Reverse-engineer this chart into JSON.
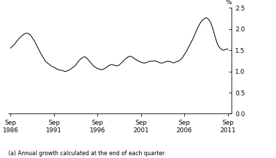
{
  "ylabel": "%",
  "footnote": "(a) Annual growth calculated at the end of each quarter.",
  "line_color": "#000000",
  "background_color": "#ffffff",
  "ylim": [
    0,
    2.5
  ],
  "yticks": [
    0,
    0.5,
    1.0,
    1.5,
    2.0,
    2.5
  ],
  "xtick_labels": [
    "Sep\n1986",
    "Sep\n1991",
    "Sep\n1996",
    "Sep\n2001",
    "Sep\n2006",
    "Sep\n2011"
  ],
  "xtick_positions": [
    1986.75,
    1991.75,
    1996.75,
    2001.75,
    2006.75,
    2011.75
  ],
  "xlim": [
    1986.5,
    2012.2
  ],
  "years": [
    1986.75,
    1987.0,
    1987.25,
    1987.5,
    1987.75,
    1988.0,
    1988.25,
    1988.5,
    1988.75,
    1989.0,
    1989.25,
    1989.5,
    1989.75,
    1990.0,
    1990.25,
    1990.5,
    1990.75,
    1991.0,
    1991.25,
    1991.5,
    1991.75,
    1992.0,
    1992.25,
    1992.5,
    1992.75,
    1993.0,
    1993.25,
    1993.5,
    1993.75,
    1994.0,
    1994.25,
    1994.5,
    1994.75,
    1995.0,
    1995.25,
    1995.5,
    1995.75,
    1996.0,
    1996.25,
    1996.5,
    1996.75,
    1997.0,
    1997.25,
    1997.5,
    1997.75,
    1998.0,
    1998.25,
    1998.5,
    1998.75,
    1999.0,
    1999.25,
    1999.5,
    1999.75,
    2000.0,
    2000.25,
    2000.5,
    2000.75,
    2001.0,
    2001.25,
    2001.5,
    2001.75,
    2002.0,
    2002.25,
    2002.5,
    2002.75,
    2003.0,
    2003.25,
    2003.5,
    2003.75,
    2004.0,
    2004.25,
    2004.5,
    2004.75,
    2005.0,
    2005.25,
    2005.5,
    2005.75,
    2006.0,
    2006.25,
    2006.5,
    2006.75,
    2007.0,
    2007.25,
    2007.5,
    2007.75,
    2008.0,
    2008.25,
    2008.5,
    2008.75,
    2009.0,
    2009.25,
    2009.5,
    2009.75,
    2010.0,
    2010.25,
    2010.5,
    2010.75,
    2011.0,
    2011.25,
    2011.5,
    2011.75
  ],
  "values": [
    1.55,
    1.6,
    1.65,
    1.72,
    1.78,
    1.83,
    1.87,
    1.9,
    1.9,
    1.87,
    1.8,
    1.72,
    1.62,
    1.52,
    1.42,
    1.33,
    1.25,
    1.2,
    1.16,
    1.12,
    1.1,
    1.07,
    1.04,
    1.03,
    1.02,
    1.0,
    1.01,
    1.03,
    1.07,
    1.1,
    1.15,
    1.22,
    1.28,
    1.32,
    1.35,
    1.32,
    1.26,
    1.2,
    1.14,
    1.1,
    1.07,
    1.05,
    1.04,
    1.06,
    1.09,
    1.13,
    1.16,
    1.16,
    1.14,
    1.13,
    1.15,
    1.2,
    1.25,
    1.3,
    1.34,
    1.36,
    1.34,
    1.3,
    1.27,
    1.24,
    1.22,
    1.2,
    1.2,
    1.22,
    1.24,
    1.24,
    1.25,
    1.24,
    1.22,
    1.2,
    1.2,
    1.22,
    1.24,
    1.24,
    1.22,
    1.2,
    1.22,
    1.24,
    1.27,
    1.32,
    1.4,
    1.48,
    1.58,
    1.68,
    1.78,
    1.9,
    2.02,
    2.12,
    2.2,
    2.24,
    2.27,
    2.24,
    2.16,
    2.02,
    1.84,
    1.67,
    1.57,
    1.52,
    1.5,
    1.52,
    1.53
  ],
  "tick_fontsize": 6.5,
  "footnote_fontsize": 5.8
}
